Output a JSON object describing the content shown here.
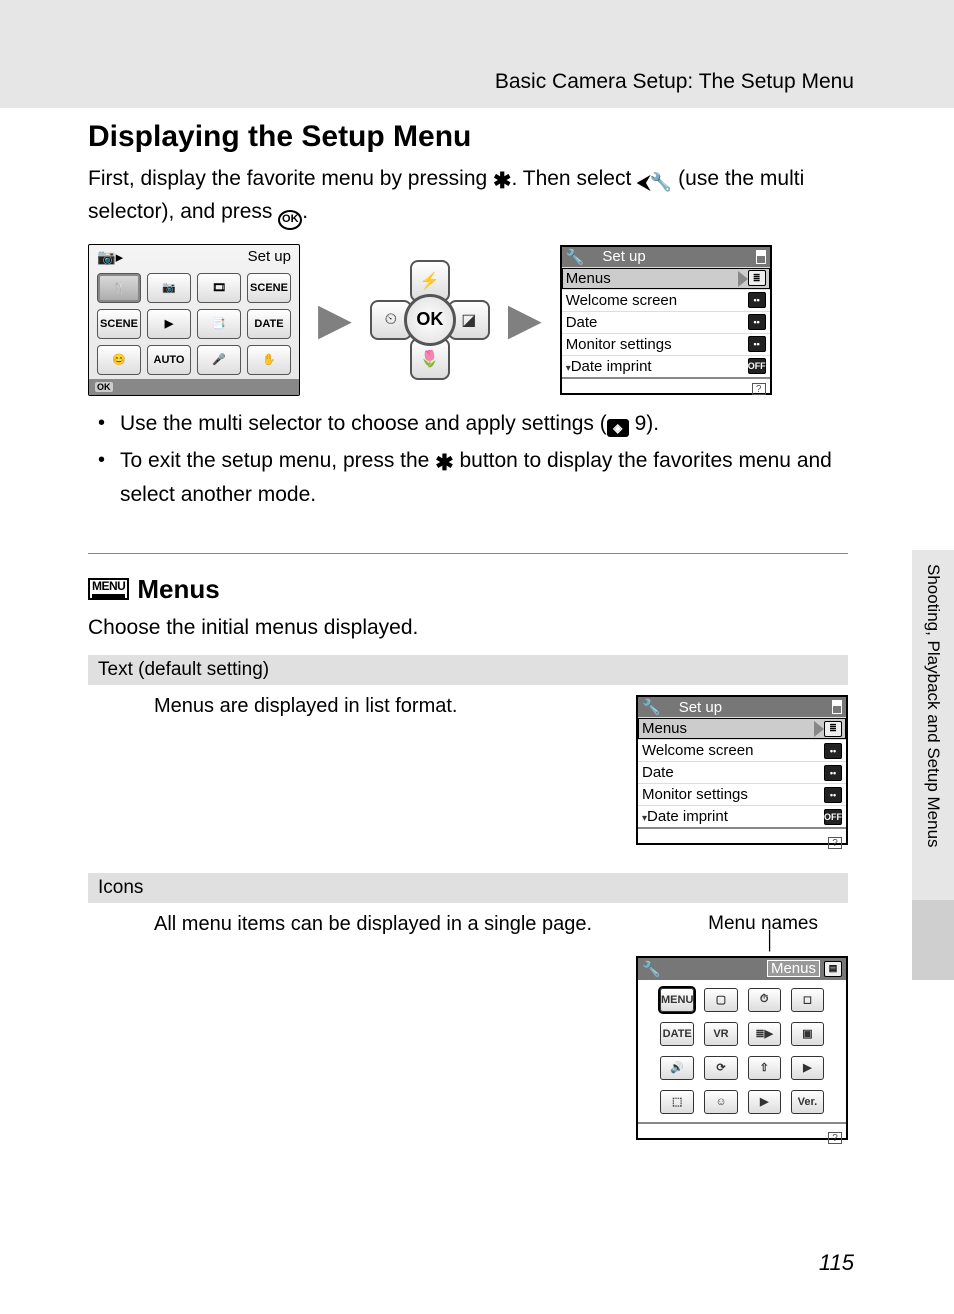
{
  "header": "Basic Camera Setup: The Setup Menu",
  "title": "Displaying the Setup Menu",
  "intro_1a": "First, display the favorite menu by pressing ",
  "intro_1b": ". Then select ",
  "intro_1c": " (use the multi selector), and press ",
  "intro_1d": ".",
  "fav_menu": {
    "title": "Set up",
    "cells": [
      "🍴",
      "📷",
      "🎞",
      "SCENE",
      "SCENE",
      "▶",
      "📑",
      "DATE",
      "😊",
      "AUTO",
      "🎤",
      "✋"
    ],
    "highlight_index": 0
  },
  "setup_menu": {
    "title": "Set up",
    "rows": [
      {
        "label": "Menus",
        "badge": "≣",
        "sel": true,
        "badge_style": "list"
      },
      {
        "label": "Welcome screen",
        "badge": "••",
        "sel": false,
        "badge_style": "dots"
      },
      {
        "label": "Date",
        "badge": "••",
        "sel": false,
        "badge_style": "dots"
      },
      {
        "label": "Monitor settings",
        "badge": "••",
        "sel": false,
        "badge_style": "dots"
      },
      {
        "label": "Date imprint",
        "badge": "OFF",
        "sel": false,
        "badge_style": "off",
        "arrow": true
      }
    ]
  },
  "bullet1a": "Use the multi selector to choose and apply settings (",
  "bullet1b": " 9).",
  "bullet2a": "To exit the setup menu, press the ",
  "bullet2b": " button to display the favorites menu and select another mode.",
  "menus_heading": "Menus",
  "menus_intro": "Choose the initial menus displayed.",
  "opt_text_head": "Text (default setting)",
  "opt_text_body": "Menus are displayed in list format.",
  "opt_icons_head": "Icons",
  "opt_icons_body": "All menu items can be displayed in a single page.",
  "menu_names_label": "Menu names",
  "icons_menu": {
    "title_sel": "Menus",
    "cells": [
      "MENU",
      "▢",
      "⏱",
      "◻",
      "DATE",
      "VR",
      "≣▶",
      "▣",
      "🔊",
      "⟳",
      "⇧",
      "▶",
      "⬚",
      "☺",
      "▶",
      "Ver."
    ]
  },
  "side_tab": "Shooting, Playback and Setup Menus",
  "page_number": "115",
  "colors": {
    "page_bg": "#e6e6e6",
    "gray_bar": "#e0e0e0",
    "menu_title_bg": "#777777",
    "arrow": "#808080"
  }
}
